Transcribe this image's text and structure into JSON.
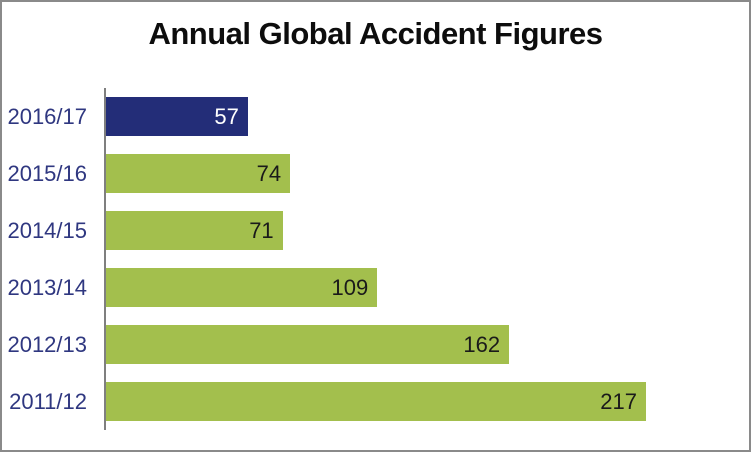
{
  "title": "Annual Global Accident Figures",
  "chart_data": {
    "type": "bar",
    "orientation": "horizontal",
    "title": "Annual Global Accident Figures",
    "xlabel": "",
    "ylabel": "",
    "categories": [
      "2016/17",
      "2015/16",
      "2014/15",
      "2013/14",
      "2012/13",
      "2011/12"
    ],
    "values": [
      57,
      74,
      71,
      109,
      162,
      217
    ],
    "xlim": [
      0,
      217
    ],
    "grid": false,
    "legend": false,
    "data_label_position": "inside-end",
    "bar_colors": [
      "#232d78",
      "#a3bf4d",
      "#a3bf4d",
      "#a3bf4d",
      "#a3bf4d",
      "#a3bf4d"
    ],
    "data_label_colors": [
      "#ffffff",
      "#1a1a1a",
      "#1a1a1a",
      "#1a1a1a",
      "#1a1a1a",
      "#1a1a1a"
    ]
  },
  "colors": {
    "highlight_bar": "#232d78",
    "default_bar": "#a3bf4d",
    "category_label_text": "#2f3780",
    "title_text": "#0d0d0d",
    "axis_line": "#7f7f7f",
    "frame_border": "#8a8a8a",
    "background": "#ffffff"
  }
}
